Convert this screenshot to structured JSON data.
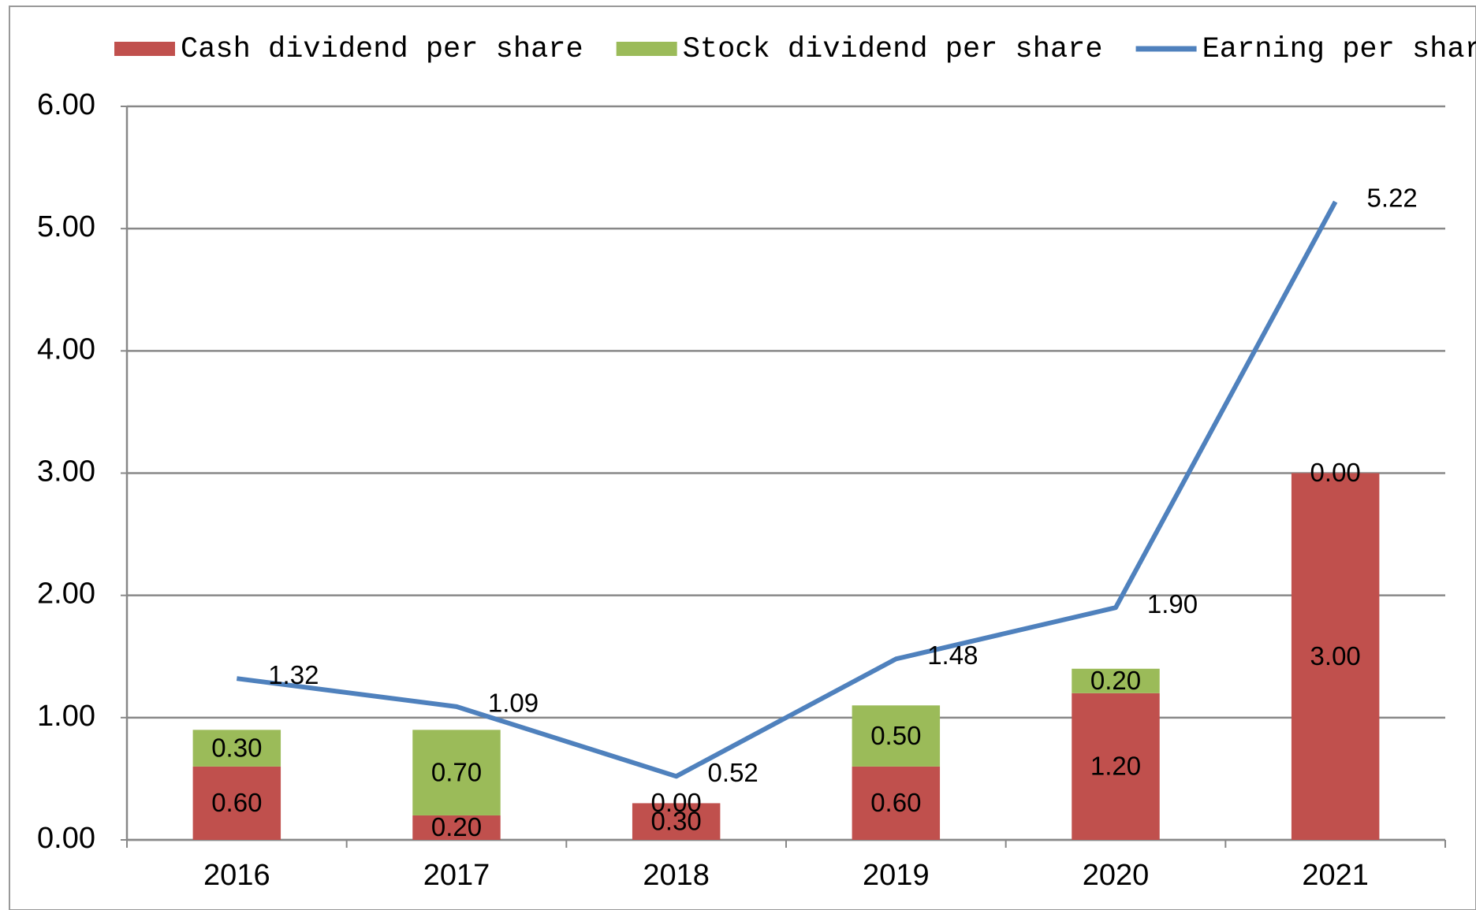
{
  "chart_data": {
    "type": "bar",
    "categories": [
      "2016",
      "2017",
      "2018",
      "2019",
      "2020",
      "2021"
    ],
    "series": [
      {
        "name": "Cash dividend per share",
        "type": "bar",
        "color": "#c0504d",
        "values": [
          0.6,
          0.2,
          0.3,
          0.6,
          1.2,
          3.0
        ],
        "value_labels": [
          "0.60",
          "0.20",
          "0.30",
          "0.60",
          "1.20",
          "3.00"
        ]
      },
      {
        "name": "Stock dividend per share",
        "type": "bar",
        "color": "#9bbb59",
        "values": [
          0.3,
          0.7,
          0.0,
          0.5,
          0.2,
          0.0
        ],
        "value_labels": [
          "0.30",
          "0.70",
          "0.00",
          "0.50",
          "0.20",
          "0.00"
        ]
      },
      {
        "name": "Earning per share",
        "type": "line",
        "color": "#4f81bd",
        "values": [
          1.32,
          1.09,
          0.52,
          1.48,
          1.9,
          5.22
        ],
        "value_labels": [
          "1.32",
          "1.09",
          "0.52",
          "1.48",
          "1.90",
          "5.22"
        ]
      }
    ],
    "ylim": [
      0,
      6
    ],
    "yticks": [
      {
        "value": 0,
        "label": "0.00"
      },
      {
        "value": 1,
        "label": "1.00"
      },
      {
        "value": 2,
        "label": "2.00"
      },
      {
        "value": 3,
        "label": "3.00"
      },
      {
        "value": 4,
        "label": "4.00"
      },
      {
        "value": 5,
        "label": "5.00"
      },
      {
        "value": 6,
        "label": "6.00"
      }
    ],
    "grid": true,
    "legend": "top",
    "stacked": true
  }
}
